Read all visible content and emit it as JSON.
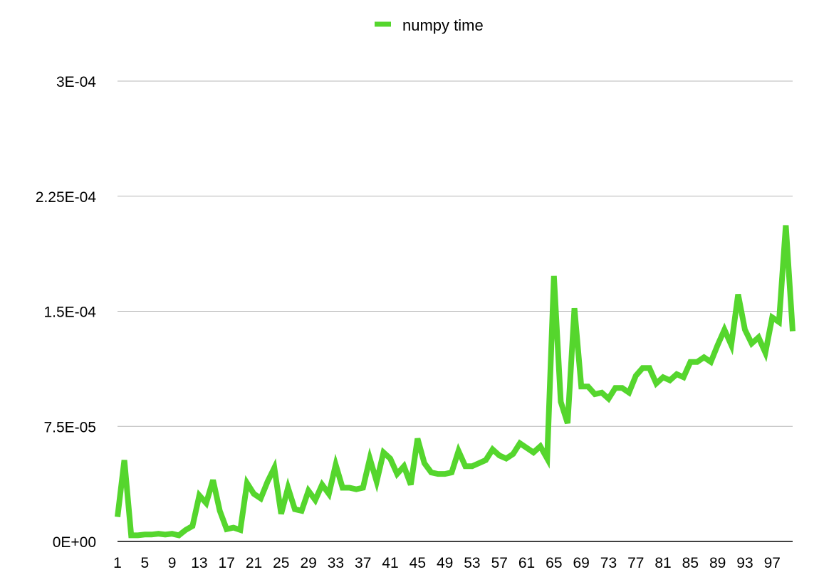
{
  "chart_data": {
    "type": "line",
    "title": "",
    "xlabel": "",
    "ylabel": "",
    "grid": true,
    "legend_position": "top-center",
    "ylim": [
      0,
      0.0003
    ],
    "y_ticks": [
      {
        "value": 0,
        "label": "0E+00"
      },
      {
        "value": 7.5e-05,
        "label": "7.5E-05"
      },
      {
        "value": 0.00015,
        "label": "1.5E-04"
      },
      {
        "value": 0.000225,
        "label": "2.25E-04"
      },
      {
        "value": 0.0003,
        "label": "3E-04"
      }
    ],
    "x": [
      1,
      2,
      3,
      4,
      5,
      6,
      7,
      8,
      9,
      10,
      11,
      12,
      13,
      14,
      15,
      16,
      17,
      18,
      19,
      20,
      21,
      22,
      23,
      24,
      25,
      26,
      27,
      28,
      29,
      30,
      31,
      32,
      33,
      34,
      35,
      36,
      37,
      38,
      39,
      40,
      41,
      42,
      43,
      44,
      45,
      46,
      47,
      48,
      49,
      50,
      51,
      52,
      53,
      54,
      55,
      56,
      57,
      58,
      59,
      60,
      61,
      62,
      63,
      64,
      65,
      66,
      67,
      68,
      69,
      70,
      71,
      72,
      73,
      74,
      75,
      76,
      77,
      78,
      79,
      80,
      81,
      82,
      83,
      84,
      85,
      86,
      87,
      88,
      89,
      90,
      91,
      92,
      93,
      94,
      95,
      96,
      97,
      98,
      99,
      100
    ],
    "x_tick_labels": [
      "1",
      "5",
      "9",
      "13",
      "17",
      "21",
      "25",
      "29",
      "33",
      "37",
      "41",
      "45",
      "49",
      "53",
      "57",
      "61",
      "65",
      "69",
      "73",
      "77",
      "81",
      "85",
      "89",
      "93",
      "97"
    ],
    "series": [
      {
        "name": "numpy time",
        "color": "#55d62d",
        "values": [
          1.6e-05,
          5.3e-05,
          4e-06,
          4e-06,
          4.5e-06,
          4.5e-06,
          5e-06,
          4.5e-06,
          5e-06,
          4e-06,
          7.5e-06,
          1e-05,
          3e-05,
          2.5e-05,
          4e-05,
          2e-05,
          8e-06,
          9e-06,
          7.5e-06,
          3.8e-05,
          3.1e-05,
          2.8e-05,
          3.9e-05,
          4.8e-05,
          1.8e-05,
          3.5e-05,
          2.1e-05,
          2e-05,
          3.3e-05,
          2.7e-05,
          3.7e-05,
          3.1e-05,
          5e-05,
          3.5e-05,
          3.5e-05,
          3.4e-05,
          3.5e-05,
          5.4e-05,
          3.9e-05,
          5.8e-05,
          5.4e-05,
          4.4e-05,
          4.9e-05,
          3.7e-05,
          6.7e-05,
          5.1e-05,
          4.5e-05,
          4.4e-05,
          4.4e-05,
          4.5e-05,
          5.9e-05,
          4.9e-05,
          4.9e-05,
          5.1e-05,
          5.3e-05,
          6e-05,
          5.6e-05,
          5.4e-05,
          5.7e-05,
          6.4e-05,
          6.1e-05,
          5.8e-05,
          6.2e-05,
          5.4e-05,
          0.000173,
          9.1e-05,
          7.7e-05,
          0.000152,
          0.000101,
          0.000101,
          9.6e-05,
          9.7e-05,
          9.3e-05,
          0.0001,
          0.0001,
          9.7e-05,
          0.000108,
          0.000113,
          0.000113,
          0.000103,
          0.000107,
          0.000105,
          0.000109,
          0.000107,
          0.000117,
          0.000117,
          0.00012,
          0.000117,
          0.000128,
          0.000138,
          0.000128,
          0.000161,
          0.000138,
          0.000129,
          0.000133,
          0.000123,
          0.000146,
          0.000143,
          0.000206,
          0.000137
        ]
      }
    ]
  }
}
